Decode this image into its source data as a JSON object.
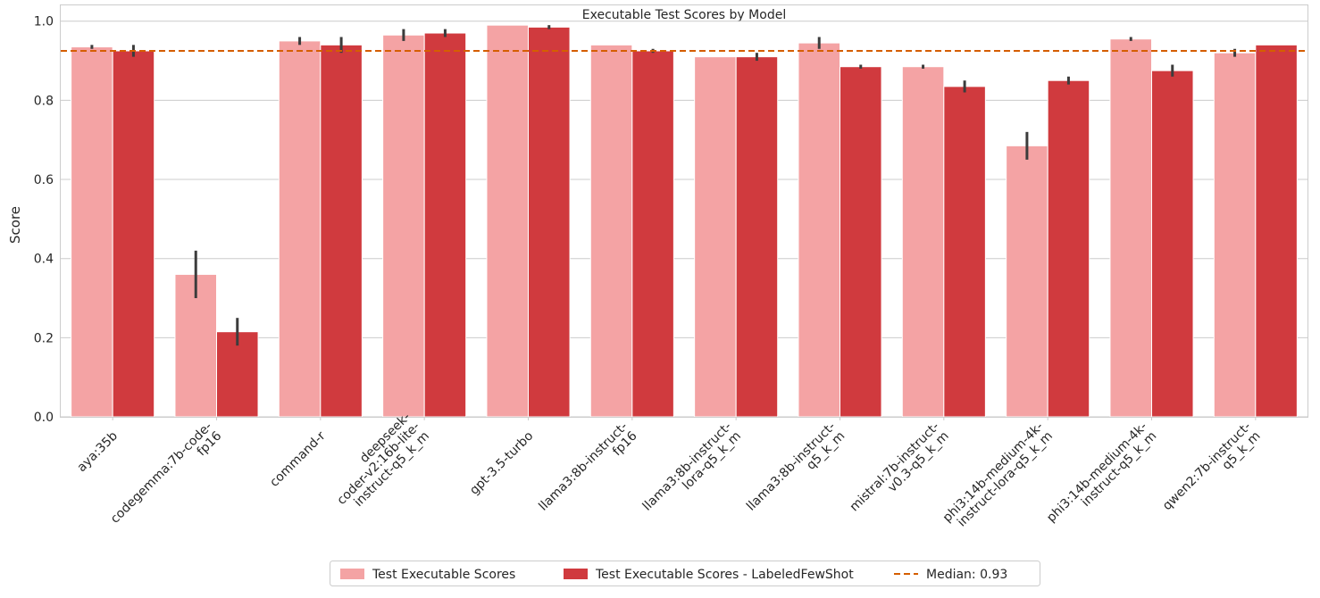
{
  "chart_data": {
    "type": "bar",
    "title": "Executable Test Scores by Model",
    "xlabel": "",
    "ylabel": "Score",
    "ylim": [
      0,
      1.04
    ],
    "yticks": [
      0.0,
      0.2,
      0.4,
      0.6,
      0.8,
      1.0
    ],
    "ytick_labels": [
      "0.0",
      "0.2",
      "0.4",
      "0.6",
      "0.8",
      "1.0"
    ],
    "grid": "horizontal",
    "legend_position": "bottom-center",
    "categories": [
      [
        "aya:35b"
      ],
      [
        "codegemma:7b-code-",
        "fp16"
      ],
      [
        "command-r"
      ],
      [
        "deepseek-",
        "coder-v2:16b-lite-",
        "instruct-q5_k_m"
      ],
      [
        "gpt-3.5-turbo"
      ],
      [
        "llama3:8b-instruct-",
        "fp16"
      ],
      [
        "llama3:8b-instruct-",
        "lora-q5_k_m"
      ],
      [
        "llama3:8b-instruct-",
        "q5_k_m"
      ],
      [
        "mistral:7b-instruct-",
        "v0.3-q5_k_m"
      ],
      [
        "phi3:14b-medium-4k-",
        "instruct-lora-q5_k_m"
      ],
      [
        "phi3:14b-medium-4k-",
        "instruct-q5_k_m"
      ],
      [
        "qwen2:7b-instruct-",
        "q5_k_m"
      ]
    ],
    "series": [
      {
        "name": "Test Executable Scores",
        "color": "#f4a3a4",
        "values": [
          0.935,
          0.36,
          0.95,
          0.965,
          0.99,
          0.94,
          0.91,
          0.945,
          0.885,
          0.685,
          0.955,
          0.92
        ],
        "err_low": [
          0.93,
          0.3,
          0.94,
          0.95,
          0.99,
          0.94,
          0.91,
          0.93,
          0.88,
          0.65,
          0.95,
          0.91
        ],
        "err_high": [
          0.94,
          0.42,
          0.96,
          0.98,
          0.99,
          0.94,
          0.91,
          0.96,
          0.89,
          0.72,
          0.96,
          0.93
        ]
      },
      {
        "name": "Test Executable Scores - LabeledFewShot",
        "color": "#d03a3e",
        "values": [
          0.925,
          0.215,
          0.94,
          0.97,
          0.985,
          0.925,
          0.91,
          0.885,
          0.835,
          0.85,
          0.875,
          0.94
        ],
        "err_low": [
          0.91,
          0.18,
          0.92,
          0.96,
          0.98,
          0.92,
          0.9,
          0.88,
          0.82,
          0.84,
          0.86,
          0.94
        ],
        "err_high": [
          0.94,
          0.25,
          0.96,
          0.98,
          0.99,
          0.93,
          0.92,
          0.89,
          0.85,
          0.86,
          0.89,
          0.94
        ]
      }
    ],
    "median": {
      "value": 0.925,
      "label": "Median: 0.93",
      "color": "#d55e00"
    }
  }
}
